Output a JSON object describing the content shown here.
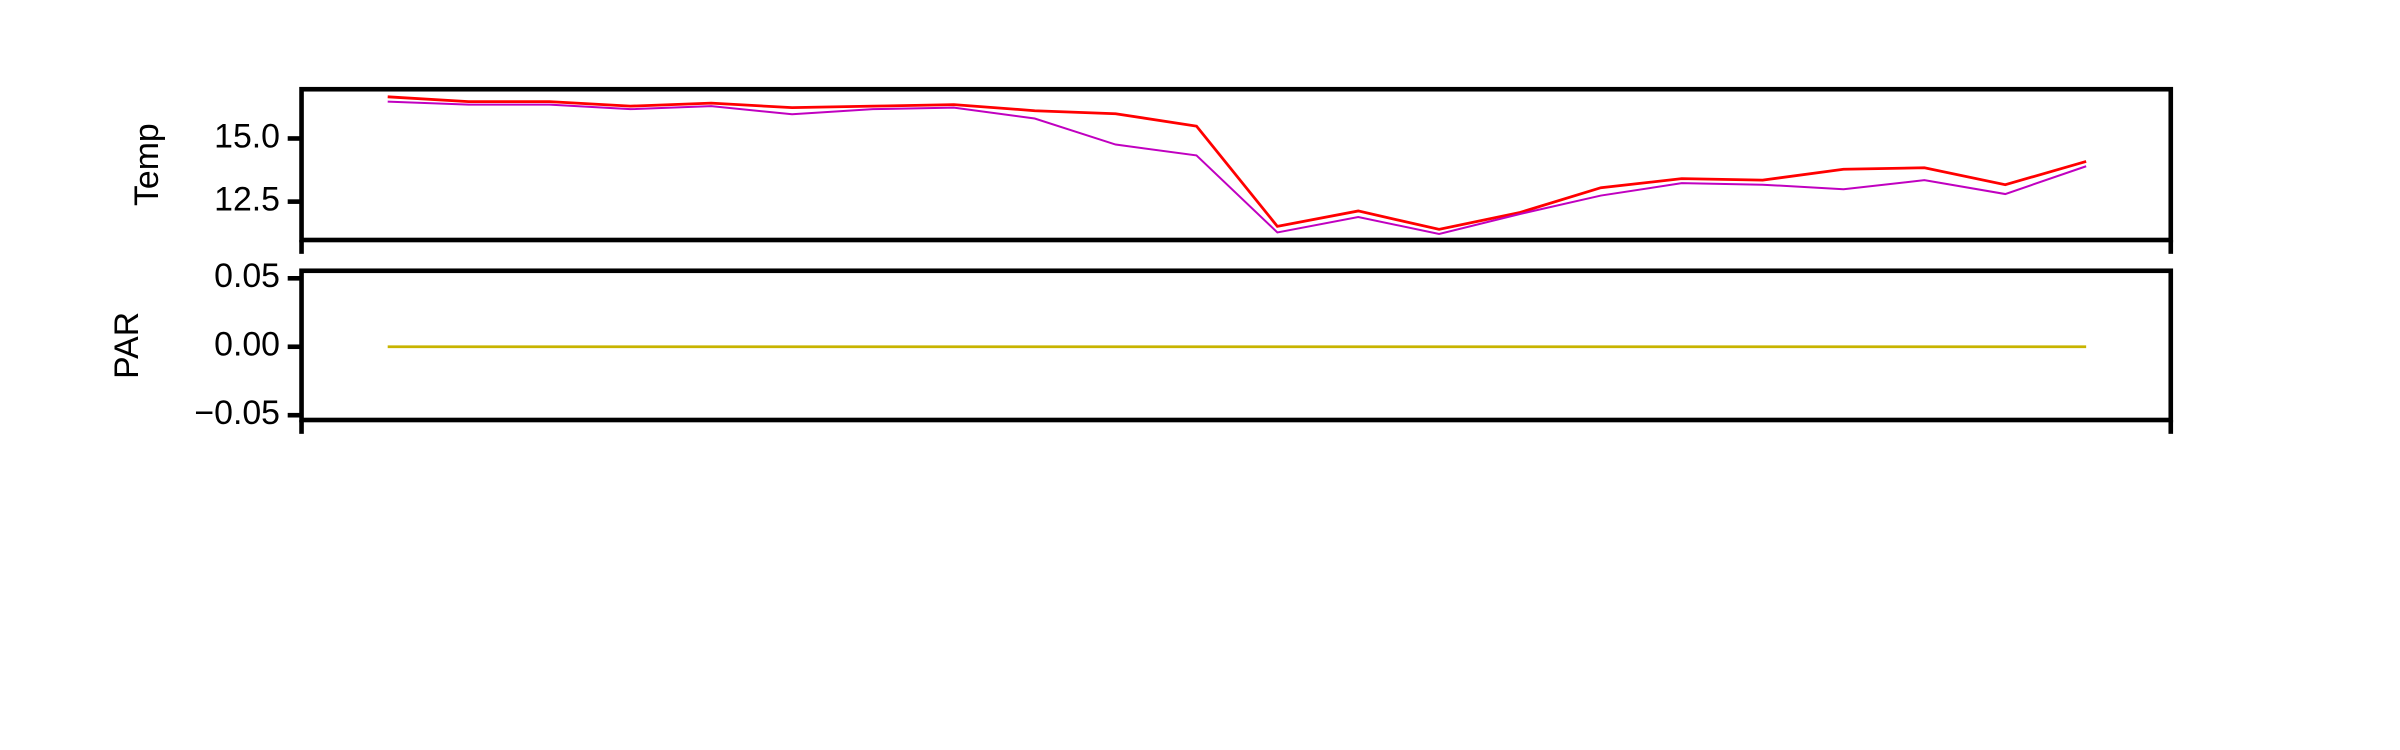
{
  "chart_data": [
    {
      "type": "line",
      "ylabel": "Temp",
      "ylim": [
        10.98,
        16.95
      ],
      "yticks": [
        {
          "value": 12.5,
          "label": "12.5"
        },
        {
          "value": 15,
          "label": "15.0"
        }
      ],
      "series": [
        {
          "color": "#ff0000",
          "values": [
            16.65,
            16.46,
            16.46,
            16.28,
            16.4,
            16.22,
            16.28,
            16.34,
            16.1,
            15.98,
            15.49,
            11.52,
            12.13,
            11.4,
            12.07,
            13.05,
            13.41,
            13.35,
            13.78,
            13.84,
            13.17,
            14.09
          ]
        },
        {
          "color": "#c000c0",
          "values": [
            16.46,
            16.34,
            16.34,
            16.16,
            16.28,
            15.96,
            16.16,
            16.22,
            15.79,
            14.76,
            14.33,
            11.28,
            11.89,
            11.22,
            12.01,
            12.74,
            13.23,
            13.17,
            12.99,
            13.35,
            12.8,
            13.9
          ]
        }
      ]
    },
    {
      "type": "line",
      "ylabel": "PAR",
      "ylim": [
        -0.0535,
        0.0555
      ],
      "yticks": [
        {
          "value": -0.05,
          "label": "−0.05"
        },
        {
          "value": 0,
          "label": "0.00"
        },
        {
          "value": 0.05,
          "label": "0.05"
        }
      ],
      "series": [
        {
          "color": "#c8b400",
          "values": [
            0,
            0,
            0,
            0,
            0,
            0,
            0,
            0,
            0,
            0,
            0,
            0,
            0,
            0,
            0,
            0,
            0,
            0,
            0,
            0,
            0,
            0
          ]
        }
      ]
    }
  ]
}
